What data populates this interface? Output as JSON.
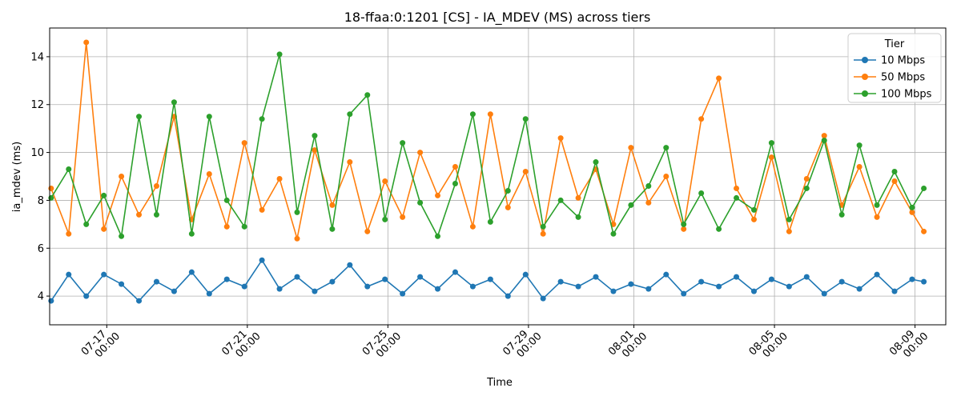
{
  "chart_data": {
    "type": "line",
    "title": "18-ffaa:0:1201 [CS] - IA_MDEV (MS) across tiers",
    "xlabel": "Time",
    "ylabel": "ia_mdev (ms)",
    "x_range": [
      "2025-07-15T09:00",
      "2025-08-09T21:00"
    ],
    "ylim": [
      2.8,
      15.2
    ],
    "y_ticks": [
      4,
      6,
      8,
      10,
      12,
      14
    ],
    "x_ticks": [
      {
        "date": "2025-07-17T00:00",
        "label": [
          "07-17",
          "00:00"
        ]
      },
      {
        "date": "2025-07-21T00:00",
        "label": [
          "07-21",
          "00:00"
        ]
      },
      {
        "date": "2025-07-25T00:00",
        "label": [
          "07-25",
          "00:00"
        ]
      },
      {
        "date": "2025-07-29T00:00",
        "label": [
          "07-29",
          "00:00"
        ]
      },
      {
        "date": "2025-08-01T00:00",
        "label": [
          "08-01",
          "00:00"
        ]
      },
      {
        "date": "2025-08-05T00:00",
        "label": [
          "08-05",
          "00:00"
        ]
      },
      {
        "date": "2025-08-09T00:00",
        "label": [
          "08-09",
          "00:00"
        ]
      }
    ],
    "grid": true,
    "legend": {
      "title": "Tier",
      "placement": "top-right"
    },
    "series": [
      {
        "name": "10 Mbps",
        "color": "#1f77b4",
        "points": [
          [
            "2025-07-15T10:00",
            3.8
          ],
          [
            "2025-07-15T22:00",
            4.9
          ],
          [
            "2025-07-16T10:00",
            4.0
          ],
          [
            "2025-07-16T22:00",
            4.9
          ],
          [
            "2025-07-17T10:00",
            4.5
          ],
          [
            "2025-07-17T22:00",
            3.8
          ],
          [
            "2025-07-18T10:00",
            4.6
          ],
          [
            "2025-07-18T22:00",
            4.2
          ],
          [
            "2025-07-19T10:00",
            5.0
          ],
          [
            "2025-07-19T22:00",
            4.1
          ],
          [
            "2025-07-20T10:00",
            4.7
          ],
          [
            "2025-07-20T22:00",
            4.4
          ],
          [
            "2025-07-21T10:00",
            5.5
          ],
          [
            "2025-07-21T22:00",
            4.3
          ],
          [
            "2025-07-22T10:00",
            4.8
          ],
          [
            "2025-07-22T22:00",
            4.2
          ],
          [
            "2025-07-23T10:00",
            4.6
          ],
          [
            "2025-07-23T22:00",
            5.3
          ],
          [
            "2025-07-24T10:00",
            4.4
          ],
          [
            "2025-07-24T22:00",
            4.7
          ],
          [
            "2025-07-25T10:00",
            4.1
          ],
          [
            "2025-07-25T22:00",
            4.8
          ],
          [
            "2025-07-26T10:00",
            4.3
          ],
          [
            "2025-07-26T22:00",
            5.0
          ],
          [
            "2025-07-27T10:00",
            4.4
          ],
          [
            "2025-07-27T22:00",
            4.7
          ],
          [
            "2025-07-28T10:00",
            4.0
          ],
          [
            "2025-07-28T22:00",
            4.9
          ],
          [
            "2025-07-29T10:00",
            3.9
          ],
          [
            "2025-07-29T22:00",
            4.6
          ],
          [
            "2025-07-30T10:00",
            4.4
          ],
          [
            "2025-07-30T22:00",
            4.8
          ],
          [
            "2025-07-31T10:00",
            4.2
          ],
          [
            "2025-07-31T22:00",
            4.5
          ],
          [
            "2025-08-01T10:00",
            4.3
          ],
          [
            "2025-08-01T22:00",
            4.9
          ],
          [
            "2025-08-02T10:00",
            4.1
          ],
          [
            "2025-08-02T22:00",
            4.6
          ],
          [
            "2025-08-03T10:00",
            4.4
          ],
          [
            "2025-08-03T22:00",
            4.8
          ],
          [
            "2025-08-04T10:00",
            4.2
          ],
          [
            "2025-08-04T22:00",
            4.7
          ],
          [
            "2025-08-05T10:00",
            4.4
          ],
          [
            "2025-08-05T22:00",
            4.8
          ],
          [
            "2025-08-06T10:00",
            4.1
          ],
          [
            "2025-08-06T22:00",
            4.6
          ],
          [
            "2025-08-07T10:00",
            4.3
          ],
          [
            "2025-08-07T22:00",
            4.9
          ],
          [
            "2025-08-08T10:00",
            4.2
          ],
          [
            "2025-08-08T22:00",
            4.7
          ],
          [
            "2025-08-09T06:00",
            4.6
          ]
        ]
      },
      {
        "name": "50 Mbps",
        "color": "#ff7f0e",
        "points": [
          [
            "2025-07-15T10:00",
            8.5
          ],
          [
            "2025-07-15T22:00",
            6.6
          ],
          [
            "2025-07-16T10:00",
            14.6
          ],
          [
            "2025-07-16T22:00",
            6.8
          ],
          [
            "2025-07-17T10:00",
            9.0
          ],
          [
            "2025-07-17T22:00",
            7.4
          ],
          [
            "2025-07-18T10:00",
            8.6
          ],
          [
            "2025-07-18T22:00",
            11.5
          ],
          [
            "2025-07-19T10:00",
            7.2
          ],
          [
            "2025-07-19T22:00",
            9.1
          ],
          [
            "2025-07-20T10:00",
            6.9
          ],
          [
            "2025-07-20T22:00",
            10.4
          ],
          [
            "2025-07-21T10:00",
            7.6
          ],
          [
            "2025-07-21T22:00",
            8.9
          ],
          [
            "2025-07-22T10:00",
            6.4
          ],
          [
            "2025-07-22T22:00",
            10.1
          ],
          [
            "2025-07-23T10:00",
            7.8
          ],
          [
            "2025-07-23T22:00",
            9.6
          ],
          [
            "2025-07-24T10:00",
            6.7
          ],
          [
            "2025-07-24T22:00",
            8.8
          ],
          [
            "2025-07-25T10:00",
            7.3
          ],
          [
            "2025-07-25T22:00",
            10.0
          ],
          [
            "2025-07-26T10:00",
            8.2
          ],
          [
            "2025-07-26T22:00",
            9.4
          ],
          [
            "2025-07-27T10:00",
            6.9
          ],
          [
            "2025-07-27T22:00",
            11.6
          ],
          [
            "2025-07-28T10:00",
            7.7
          ],
          [
            "2025-07-28T22:00",
            9.2
          ],
          [
            "2025-07-29T10:00",
            6.6
          ],
          [
            "2025-07-29T22:00",
            10.6
          ],
          [
            "2025-07-30T10:00",
            8.1
          ],
          [
            "2025-07-30T22:00",
            9.3
          ],
          [
            "2025-07-31T10:00",
            7.0
          ],
          [
            "2025-07-31T22:00",
            10.2
          ],
          [
            "2025-08-01T10:00",
            7.9
          ],
          [
            "2025-08-01T22:00",
            9.0
          ],
          [
            "2025-08-02T10:00",
            6.8
          ],
          [
            "2025-08-02T22:00",
            11.4
          ],
          [
            "2025-08-03T10:00",
            13.1
          ],
          [
            "2025-08-03T22:00",
            8.5
          ],
          [
            "2025-08-04T10:00",
            7.2
          ],
          [
            "2025-08-04T22:00",
            9.8
          ],
          [
            "2025-08-05T10:00",
            6.7
          ],
          [
            "2025-08-05T22:00",
            8.9
          ],
          [
            "2025-08-06T10:00",
            10.7
          ],
          [
            "2025-08-06T22:00",
            7.8
          ],
          [
            "2025-08-07T10:00",
            9.4
          ],
          [
            "2025-08-07T22:00",
            7.3
          ],
          [
            "2025-08-08T10:00",
            8.8
          ],
          [
            "2025-08-08T22:00",
            7.5
          ],
          [
            "2025-08-09T06:00",
            6.7
          ]
        ]
      },
      {
        "name": "100 Mbps",
        "color": "#2ca02c",
        "points": [
          [
            "2025-07-15T10:00",
            8.1
          ],
          [
            "2025-07-15T22:00",
            9.3
          ],
          [
            "2025-07-16T10:00",
            7.0
          ],
          [
            "2025-07-16T22:00",
            8.2
          ],
          [
            "2025-07-17T10:00",
            6.5
          ],
          [
            "2025-07-17T22:00",
            11.5
          ],
          [
            "2025-07-18T10:00",
            7.4
          ],
          [
            "2025-07-18T22:00",
            12.1
          ],
          [
            "2025-07-19T10:00",
            6.6
          ],
          [
            "2025-07-19T22:00",
            11.5
          ],
          [
            "2025-07-20T10:00",
            8.0
          ],
          [
            "2025-07-20T22:00",
            6.9
          ],
          [
            "2025-07-21T10:00",
            11.4
          ],
          [
            "2025-07-21T22:00",
            14.1
          ],
          [
            "2025-07-22T10:00",
            7.5
          ],
          [
            "2025-07-22T22:00",
            10.7
          ],
          [
            "2025-07-23T10:00",
            6.8
          ],
          [
            "2025-07-23T22:00",
            11.6
          ],
          [
            "2025-07-24T10:00",
            12.4
          ],
          [
            "2025-07-24T22:00",
            7.2
          ],
          [
            "2025-07-25T10:00",
            10.4
          ],
          [
            "2025-07-25T22:00",
            7.9
          ],
          [
            "2025-07-26T10:00",
            6.5
          ],
          [
            "2025-07-26T22:00",
            8.7
          ],
          [
            "2025-07-27T10:00",
            11.6
          ],
          [
            "2025-07-27T22:00",
            7.1
          ],
          [
            "2025-07-28T10:00",
            8.4
          ],
          [
            "2025-07-28T22:00",
            11.4
          ],
          [
            "2025-07-29T10:00",
            6.9
          ],
          [
            "2025-07-29T22:00",
            8.0
          ],
          [
            "2025-07-30T10:00",
            7.3
          ],
          [
            "2025-07-30T22:00",
            9.6
          ],
          [
            "2025-07-31T10:00",
            6.6
          ],
          [
            "2025-07-31T22:00",
            7.8
          ],
          [
            "2025-08-01T10:00",
            8.6
          ],
          [
            "2025-08-01T22:00",
            10.2
          ],
          [
            "2025-08-02T10:00",
            7.0
          ],
          [
            "2025-08-02T22:00",
            8.3
          ],
          [
            "2025-08-03T10:00",
            6.8
          ],
          [
            "2025-08-03T22:00",
            8.1
          ],
          [
            "2025-08-04T10:00",
            7.6
          ],
          [
            "2025-08-04T22:00",
            10.4
          ],
          [
            "2025-08-05T10:00",
            7.2
          ],
          [
            "2025-08-05T22:00",
            8.5
          ],
          [
            "2025-08-06T10:00",
            10.5
          ],
          [
            "2025-08-06T22:00",
            7.4
          ],
          [
            "2025-08-07T10:00",
            10.3
          ],
          [
            "2025-08-07T22:00",
            7.8
          ],
          [
            "2025-08-08T10:00",
            9.2
          ],
          [
            "2025-08-08T22:00",
            7.7
          ],
          [
            "2025-08-09T06:00",
            8.5
          ]
        ]
      }
    ]
  }
}
